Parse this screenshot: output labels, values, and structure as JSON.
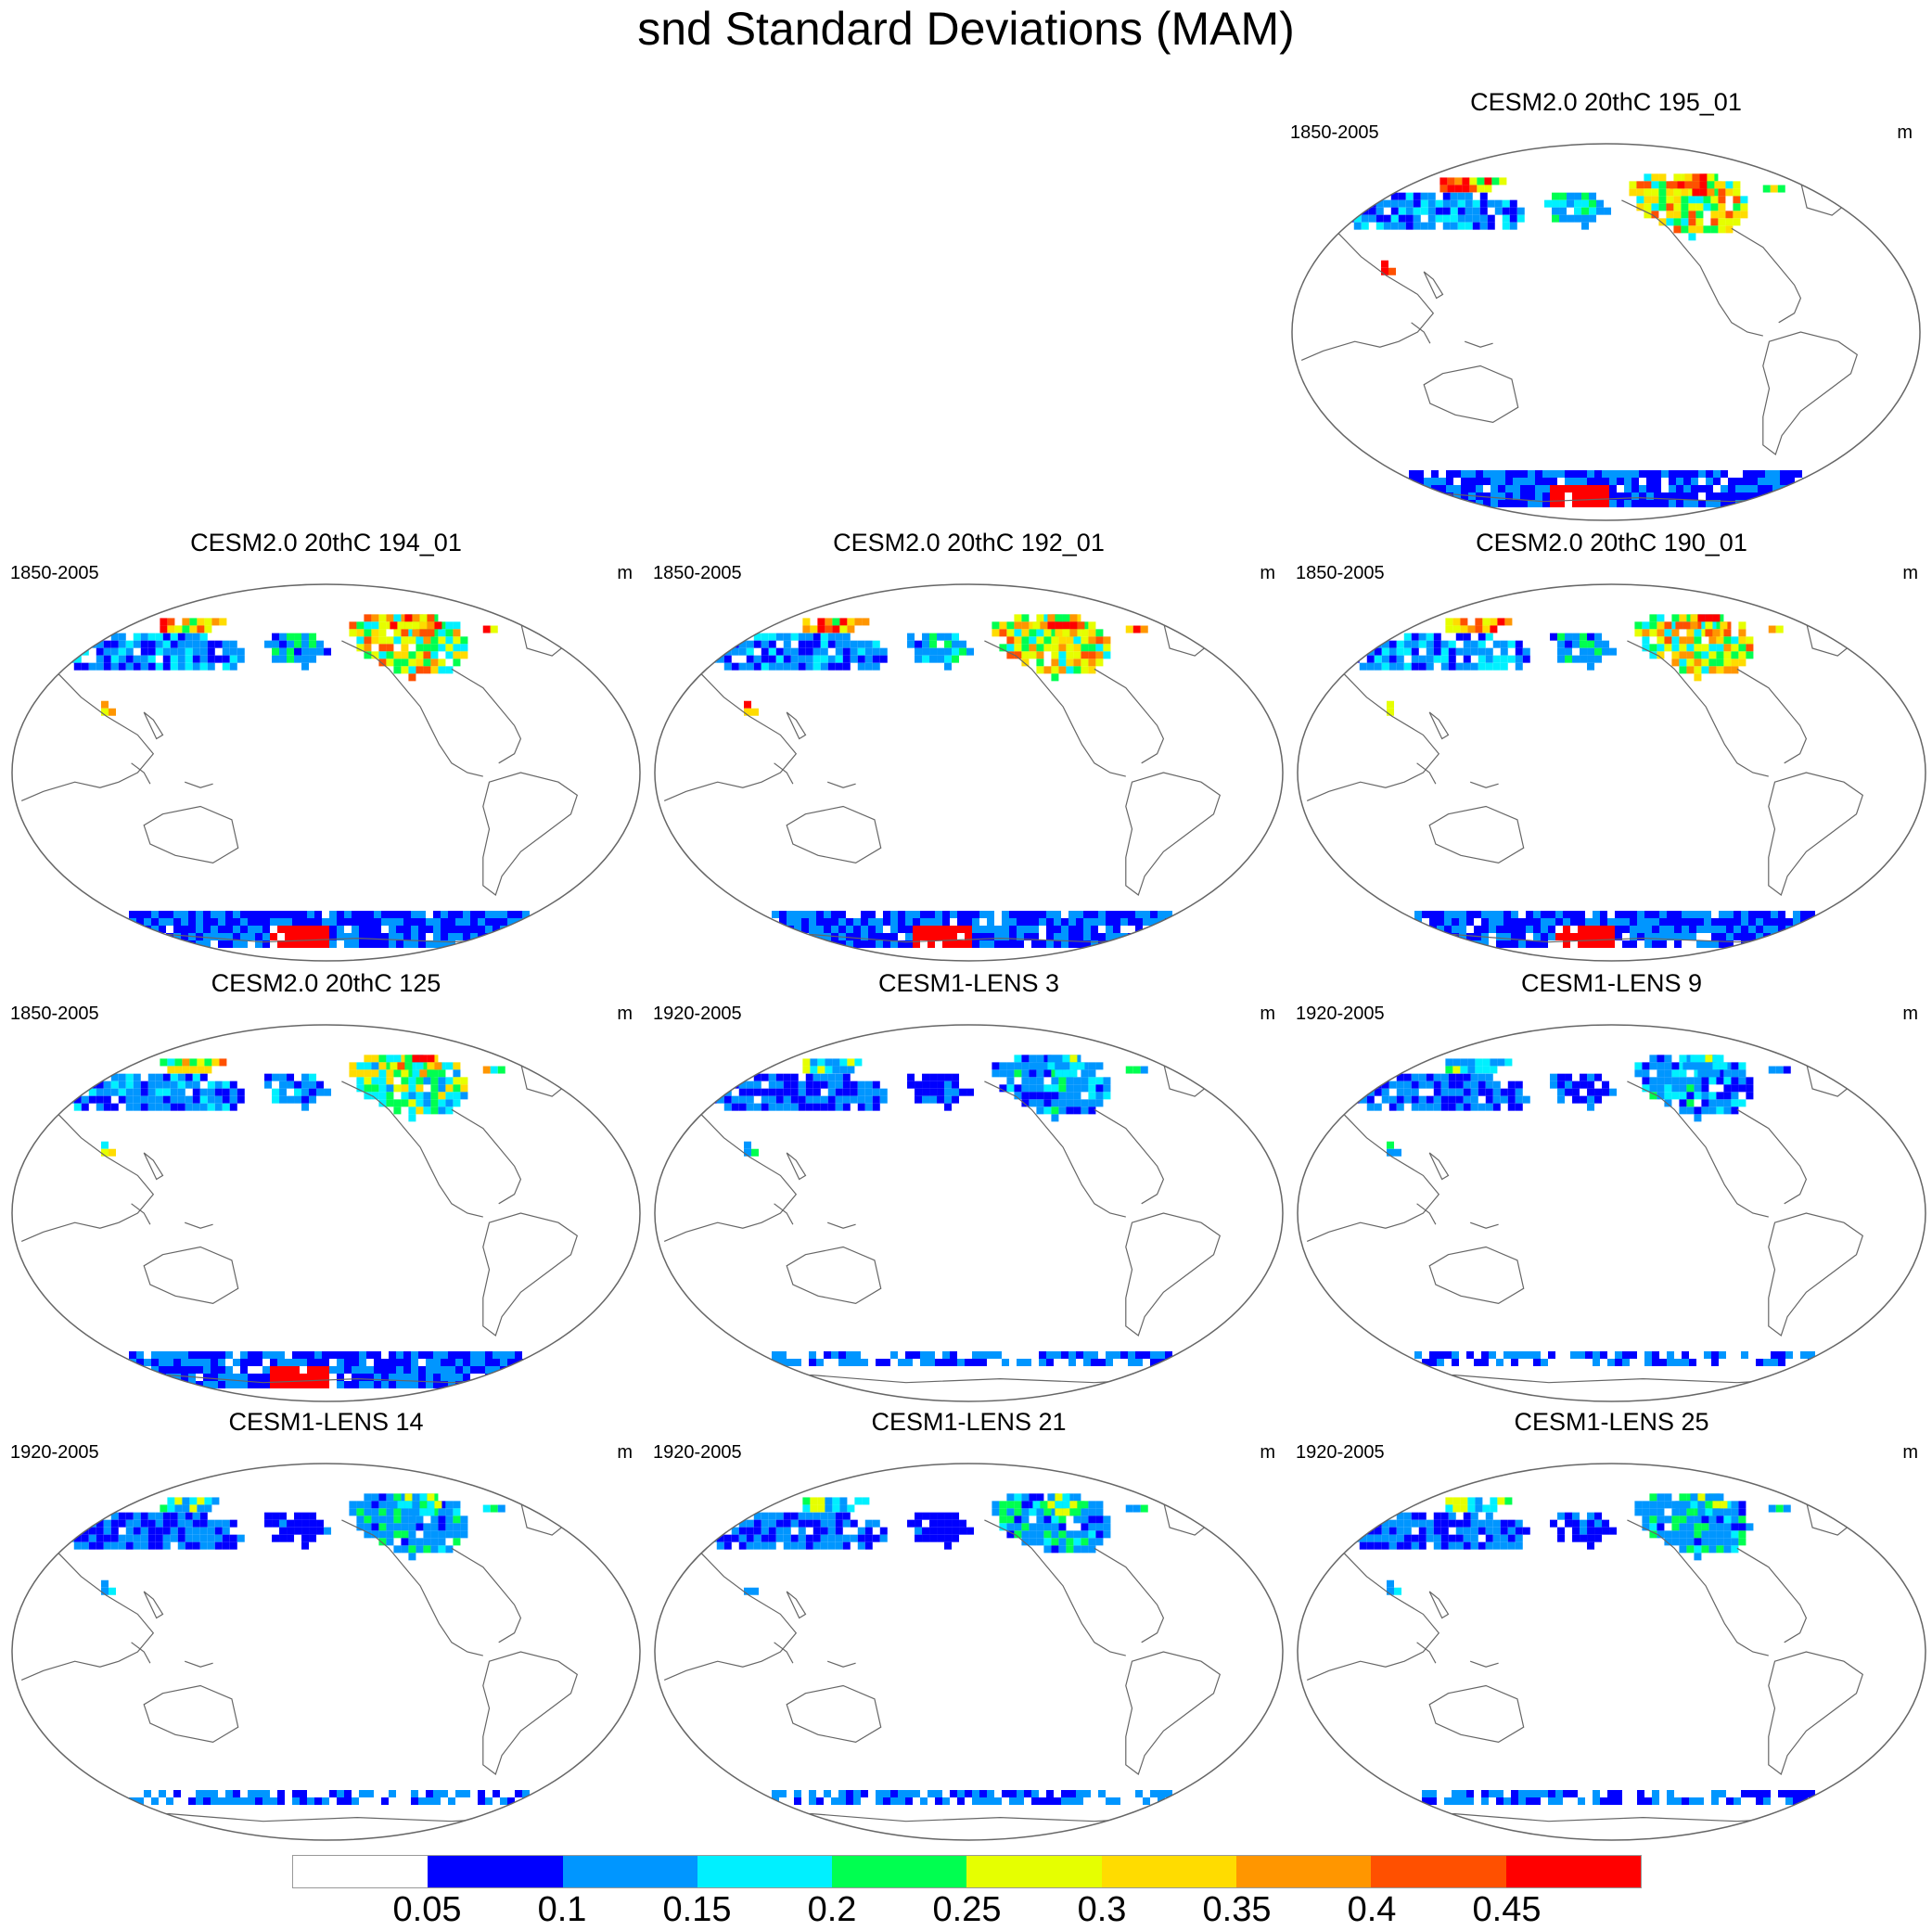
{
  "title": "snd Standard Deviations (MAM)",
  "colorbar": {
    "colors": [
      "#ffffff",
      "#0000ff",
      "#0096ff",
      "#00f0ff",
      "#00ff50",
      "#e6ff00",
      "#ffdc00",
      "#ff9600",
      "#ff5000",
      "#ff0000"
    ],
    "labels": [
      "0.05",
      "0.1",
      "0.15",
      "0.2",
      "0.25",
      "0.3",
      "0.35",
      "0.4",
      "0.45"
    ]
  },
  "panels": [
    {
      "title": "CESM2.0 20thC 195_01",
      "period": "1850-2005",
      "units": "m",
      "intensity": 1.0,
      "antarctic": "full"
    },
    {
      "title": "CESM2.0 20thC 194_01",
      "period": "1850-2005",
      "units": "m",
      "intensity": 0.9,
      "antarctic": "full"
    },
    {
      "title": "CESM2.0 20thC 192_01",
      "period": "1850-2005",
      "units": "m",
      "intensity": 0.9,
      "antarctic": "full"
    },
    {
      "title": "CESM2.0 20thC 190_01",
      "period": "1850-2005",
      "units": "m",
      "intensity": 0.9,
      "antarctic": "full"
    },
    {
      "title": "CESM2.0 20thC 125",
      "period": "1850-2005",
      "units": "m",
      "intensity": 0.7,
      "antarctic": "full"
    },
    {
      "title": "CESM1-LENS 3",
      "period": "1920-2005",
      "units": "m",
      "intensity": 0.3,
      "antarctic": "sparse"
    },
    {
      "title": "CESM1-LENS 9",
      "period": "1920-2005",
      "units": "m",
      "intensity": 0.3,
      "antarctic": "sparse"
    },
    {
      "title": "CESM1-LENS 14",
      "period": "1920-2005",
      "units": "m",
      "intensity": 0.35,
      "antarctic": "sparse"
    },
    {
      "title": "CESM1-LENS 21",
      "period": "1920-2005",
      "units": "m",
      "intensity": 0.35,
      "antarctic": "sparse"
    },
    {
      "title": "CESM1-LENS 25",
      "period": "1920-2005",
      "units": "m",
      "intensity": 0.35,
      "antarctic": "sparse"
    }
  ]
}
